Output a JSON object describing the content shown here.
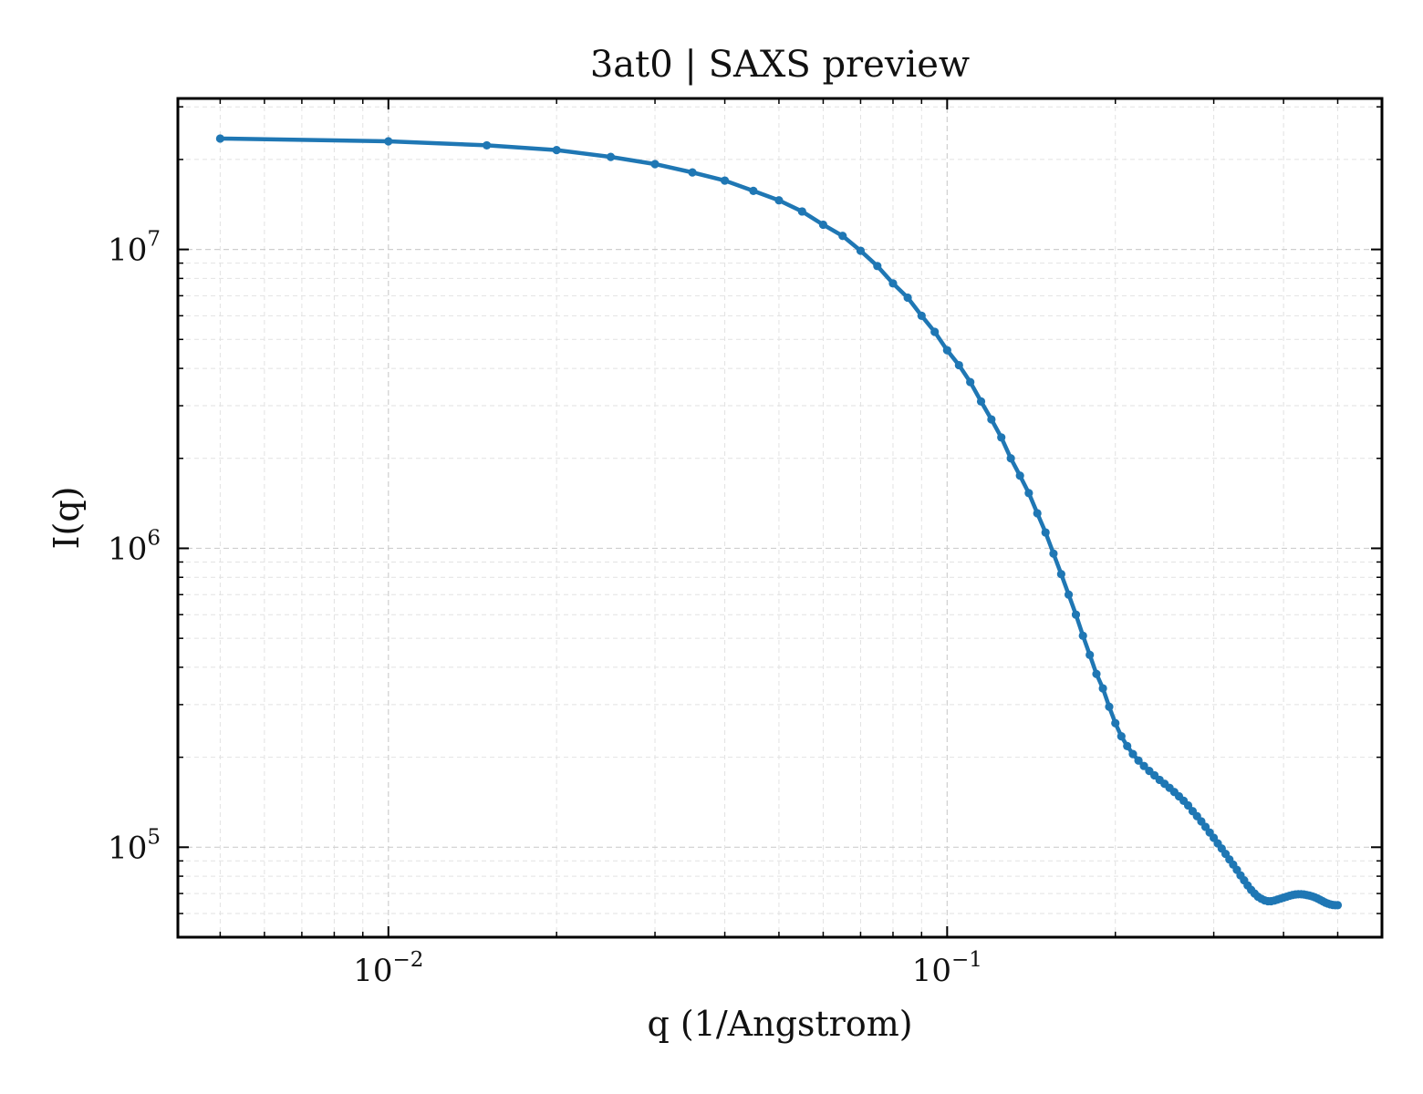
{
  "chart_data": {
    "type": "line",
    "title": "3at0 | SAXS preview",
    "xlabel": "q (1/Angstrom)",
    "ylabel": "I(q)",
    "xscale": "log",
    "yscale": "log",
    "xlim": [
      0.0042,
      0.6
    ],
    "ylim": [
      50000,
      32000000
    ],
    "grid": true,
    "legend": "none",
    "x_ticks": [
      {
        "value": 0.01,
        "base": "10",
        "exp": "−2"
      },
      {
        "value": 0.1,
        "base": "10",
        "exp": "−1"
      }
    ],
    "y_ticks": [
      {
        "value": 100000,
        "base": "10",
        "exp": "5"
      },
      {
        "value": 1000000,
        "base": "10",
        "exp": "6"
      },
      {
        "value": 10000000,
        "base": "10",
        "exp": "7"
      }
    ],
    "colors": {
      "line": "#1f77b4"
    },
    "series": [
      {
        "x": [
          0.005,
          0.01,
          0.015,
          0.02,
          0.025,
          0.03,
          0.035,
          0.04,
          0.045,
          0.05,
          0.055,
          0.06,
          0.065,
          0.07,
          0.075,
          0.08,
          0.085,
          0.09,
          0.095,
          0.1,
          0.105,
          0.11,
          0.115,
          0.12,
          0.125,
          0.13,
          0.135,
          0.14,
          0.145,
          0.15,
          0.155,
          0.16,
          0.165,
          0.17,
          0.175,
          0.18,
          0.185,
          0.19,
          0.195,
          0.2,
          0.205,
          0.21,
          0.215,
          0.22,
          0.225,
          0.23,
          0.235,
          0.24,
          0.245,
          0.25,
          0.255,
          0.26,
          0.265,
          0.27,
          0.275,
          0.28,
          0.285,
          0.29,
          0.295,
          0.3,
          0.305,
          0.31,
          0.315,
          0.32,
          0.325,
          0.33,
          0.335,
          0.34,
          0.345,
          0.35,
          0.355,
          0.36,
          0.365,
          0.37,
          0.375,
          0.38,
          0.385,
          0.39,
          0.395,
          0.4,
          0.405,
          0.41,
          0.415,
          0.42,
          0.425,
          0.43,
          0.435,
          0.44,
          0.445,
          0.45,
          0.455,
          0.46,
          0.465,
          0.47,
          0.475,
          0.48,
          0.485,
          0.49,
          0.495,
          0.5
        ],
        "y": [
          23500000,
          23000000,
          22300000,
          21500000,
          20400000,
          19300000,
          18100000,
          17000000,
          15700000,
          14600000,
          13400000,
          12100000,
          11100000,
          9900000,
          8800000,
          7700000,
          6900000,
          6000000,
          5300000,
          4600000,
          4100000,
          3600000,
          3100000,
          2700000,
          2350000,
          2000000,
          1750000,
          1530000,
          1310000,
          1130000,
          960000,
          820000,
          700000,
          600000,
          510000,
          440000,
          380000,
          340000,
          295000,
          260000,
          235000,
          218000,
          205000,
          195000,
          187000,
          180000,
          174000,
          168000,
          163000,
          158000,
          153000,
          148000,
          143000,
          138000,
          132000,
          127000,
          122000,
          117000,
          112000,
          107500,
          103000,
          99000,
          95000,
          91000,
          87500,
          84000,
          80500,
          77500,
          74500,
          72000,
          70000,
          68300,
          67200,
          66400,
          66000,
          66000,
          66300,
          66800,
          67300,
          67800,
          68300,
          68800,
          69200,
          69500,
          69600,
          69600,
          69500,
          69200,
          68900,
          68500,
          68000,
          67400,
          66700,
          66000,
          65300,
          64800,
          64400,
          64100,
          64000,
          64000
        ]
      }
    ]
  }
}
